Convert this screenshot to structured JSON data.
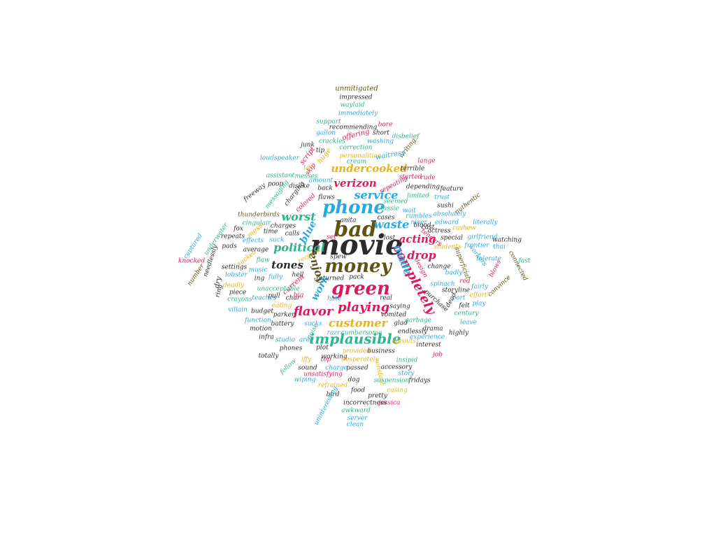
{
  "palette": {
    "pink": "#d81b60",
    "blue": "#29a8e0",
    "teal": "#2bb58a",
    "gold": "#e8b21a",
    "dark": "#2b2b2b",
    "olive": "#5f5413"
  },
  "words": [
    {
      "text": "movie",
      "color": "dark"
    },
    {
      "text": "bad",
      "color": "olive"
    },
    {
      "text": "money",
      "color": "olive"
    },
    {
      "text": "green",
      "color": "pink"
    },
    {
      "text": "phone",
      "color": "blue"
    },
    {
      "text": "implausible",
      "color": "teal"
    },
    {
      "text": "completely",
      "color": "pink"
    },
    {
      "text": "flavor",
      "color": "pink"
    },
    {
      "text": "playing",
      "color": "pink"
    },
    {
      "text": "customer",
      "color": "gold"
    },
    {
      "text": "political",
      "color": "teal"
    },
    {
      "text": "worst",
      "color": "teal"
    },
    {
      "text": "service",
      "color": "blue"
    },
    {
      "text": "waste",
      "color": "blue"
    },
    {
      "text": "acting",
      "color": "pink"
    },
    {
      "text": "verizon",
      "color": "pink"
    },
    {
      "text": "undercooked",
      "color": "gold"
    },
    {
      "text": "made",
      "color": "blue"
    },
    {
      "text": "drop",
      "color": "pink"
    },
    {
      "text": "tones",
      "color": "dark"
    },
    {
      "text": "enjoy",
      "color": "olive"
    },
    {
      "text": "blue",
      "color": "blue"
    },
    {
      "text": "work",
      "color": "blue"
    },
    {
      "text": "unmitigated",
      "color": "olive"
    },
    {
      "text": "impressed",
      "color": "dark"
    },
    {
      "text": "waylaid",
      "color": "teal"
    },
    {
      "text": "immediately",
      "color": "blue"
    },
    {
      "text": "support",
      "color": "teal"
    },
    {
      "text": "bore",
      "color": "pink"
    },
    {
      "text": "recommending",
      "color": "dark"
    },
    {
      "text": "gallon",
      "color": "blue"
    },
    {
      "text": "offering",
      "color": "pink"
    },
    {
      "text": "short",
      "color": "dark"
    },
    {
      "text": "disbelief",
      "color": "teal"
    },
    {
      "text": "crackles",
      "color": "teal"
    },
    {
      "text": "washing",
      "color": "blue"
    },
    {
      "text": "junk",
      "color": "dark"
    },
    {
      "text": "correction",
      "color": "teal"
    },
    {
      "text": "writing",
      "color": "olive"
    },
    {
      "text": "tip",
      "color": "dark"
    },
    {
      "text": "personalities",
      "color": "gold"
    },
    {
      "text": "waitress",
      "color": "blue"
    },
    {
      "text": "lange",
      "color": "pink"
    },
    {
      "text": "loudspeaker",
      "color": "blue"
    },
    {
      "text": "script",
      "color": "pink"
    },
    {
      "text": "huge",
      "color": "gold"
    },
    {
      "text": "cream",
      "color": "teal"
    },
    {
      "text": "text",
      "color": "gold"
    },
    {
      "text": "skip",
      "color": "pink"
    },
    {
      "text": "terrible",
      "color": "dark"
    },
    {
      "text": "assistant",
      "color": "teal"
    },
    {
      "text": "messes",
      "color": "teal"
    },
    {
      "text": "started",
      "color": "pink"
    },
    {
      "text": "rude",
      "color": "pink"
    },
    {
      "text": "amount",
      "color": "blue"
    },
    {
      "text": "repeating",
      "color": "pink"
    },
    {
      "text": "poop",
      "color": "dark"
    },
    {
      "text": "dislike",
      "color": "dark"
    },
    {
      "text": "depending",
      "color": "dark"
    },
    {
      "text": "feature",
      "color": "dark"
    },
    {
      "text": "back",
      "color": "dark"
    },
    {
      "text": "limited",
      "color": "teal"
    },
    {
      "text": "freeway",
      "color": "dark"
    },
    {
      "text": "messaging",
      "color": "teal"
    },
    {
      "text": "charging",
      "color": "dark"
    },
    {
      "text": "flaws",
      "color": "dark"
    },
    {
      "text": "seemed",
      "color": "teal"
    },
    {
      "text": "trust",
      "color": "blue"
    },
    {
      "text": "colored",
      "color": "pink"
    },
    {
      "text": "lassie",
      "color": "teal"
    },
    {
      "text": "wait",
      "color": "blue"
    },
    {
      "text": "authentic",
      "color": "olive"
    },
    {
      "text": "thunderbirds",
      "color": "olive"
    },
    {
      "text": "cingulair",
      "color": "teal"
    },
    {
      "text": "charges",
      "color": "dark"
    },
    {
      "text": "anita",
      "color": "dark"
    },
    {
      "text": "cases",
      "color": "dark"
    },
    {
      "text": "nicer",
      "color": "blue"
    },
    {
      "text": "absolutely",
      "color": "blue"
    },
    {
      "text": "underwater",
      "color": "teal"
    },
    {
      "text": "time",
      "color": "dark"
    },
    {
      "text": "rumbles",
      "color": "blue"
    },
    {
      "text": "edward",
      "color": "blue"
    },
    {
      "text": "literally",
      "color": "blue"
    },
    {
      "text": "fox",
      "color": "dark"
    },
    {
      "text": "mess",
      "color": "gold"
    },
    {
      "text": "calls",
      "color": "dark"
    },
    {
      "text": "blood",
      "color": "dark"
    },
    {
      "text": "cast",
      "color": "dark"
    },
    {
      "text": "sushi",
      "color": "dark"
    },
    {
      "text": "cashew",
      "color": "gold"
    },
    {
      "text": "repeats",
      "color": "dark"
    },
    {
      "text": "set",
      "color": "pink"
    },
    {
      "text": "lost",
      "color": "dark"
    },
    {
      "text": "actress",
      "color": "dark"
    },
    {
      "text": "special",
      "color": "dark"
    },
    {
      "text": "girlfriend",
      "color": "blue"
    },
    {
      "text": "captured",
      "color": "blue"
    },
    {
      "text": "effects",
      "color": "blue"
    },
    {
      "text": "suck",
      "color": "blue"
    },
    {
      "text": "pads",
      "color": "dark"
    },
    {
      "text": "students",
      "color": "gold"
    },
    {
      "text": "tenders",
      "color": "pink"
    },
    {
      "text": "watching",
      "color": "dark"
    },
    {
      "text": "frontier",
      "color": "blue"
    },
    {
      "text": "thai",
      "color": "blue"
    },
    {
      "text": "sucked",
      "color": "gold"
    },
    {
      "text": "average",
      "color": "dark"
    },
    {
      "text": "flaw",
      "color": "teal"
    },
    {
      "text": "knocked",
      "color": "pink"
    },
    {
      "text": "tolerate",
      "color": "blue"
    },
    {
      "text": "connected",
      "color": "olive"
    },
    {
      "text": "fast",
      "color": "teal"
    },
    {
      "text": "needlessly",
      "color": "dark"
    },
    {
      "text": "settings",
      "color": "dark"
    },
    {
      "text": "recover",
      "color": "gold"
    },
    {
      "text": "design",
      "color": "pink"
    },
    {
      "text": "change",
      "color": "dark"
    },
    {
      "text": "superficial",
      "color": "olive"
    },
    {
      "text": "workers",
      "color": "blue"
    },
    {
      "text": "music",
      "color": "blue"
    },
    {
      "text": "hell",
      "color": "dark"
    },
    {
      "text": "spew",
      "color": "dark"
    },
    {
      "text": "pack",
      "color": "dark"
    },
    {
      "text": "badly",
      "color": "blue"
    },
    {
      "text": "blows",
      "color": "pink"
    },
    {
      "text": "number",
      "color": "olive"
    },
    {
      "text": "lobster",
      "color": "blue"
    },
    {
      "text": "ing",
      "color": "dark"
    },
    {
      "text": "red",
      "color": "pink"
    },
    {
      "text": "convince",
      "color": "olive"
    },
    {
      "text": "piece",
      "color": "dark"
    },
    {
      "text": "fully",
      "color": "blue"
    },
    {
      "text": "returned",
      "color": "dark"
    },
    {
      "text": "spinach",
      "color": "blue"
    },
    {
      "text": "fairly",
      "color": "blue"
    },
    {
      "text": "deadly",
      "color": "gold"
    },
    {
      "text": "current",
      "color": "pink"
    },
    {
      "text": "storyline",
      "color": "dark"
    },
    {
      "text": "unacceptable",
      "color": "teal"
    },
    {
      "text": "ring",
      "color": "dark"
    },
    {
      "text": "hate",
      "color": "blue"
    },
    {
      "text": "effort",
      "color": "gold"
    },
    {
      "text": "dry",
      "color": "dark"
    },
    {
      "text": "crayons",
      "color": "teal"
    },
    {
      "text": "teaches",
      "color": "blue"
    },
    {
      "text": "char",
      "color": "dark"
    },
    {
      "text": "real",
      "color": "dark"
    },
    {
      "text": "port",
      "color": "blue"
    },
    {
      "text": "felt",
      "color": "dark"
    },
    {
      "text": "play",
      "color": "blue"
    },
    {
      "text": "villain",
      "color": "blue"
    },
    {
      "text": "budget",
      "color": "dark"
    },
    {
      "text": "eating",
      "color": "gold"
    },
    {
      "text": "saying",
      "color": "dark"
    },
    {
      "text": "purchase",
      "color": "dark"
    },
    {
      "text": "dead",
      "color": "dark"
    },
    {
      "text": "parker",
      "color": "dark"
    },
    {
      "text": "vomited",
      "color": "dark"
    },
    {
      "text": "century",
      "color": "teal"
    },
    {
      "text": "function",
      "color": "blue"
    },
    {
      "text": "battery",
      "color": "dark"
    },
    {
      "text": "sucks",
      "color": "blue"
    },
    {
      "text": "glad",
      "color": "dark"
    },
    {
      "text": "garbage",
      "color": "teal"
    },
    {
      "text": "leave",
      "color": "blue"
    },
    {
      "text": "motion",
      "color": "dark"
    },
    {
      "text": "drama",
      "color": "dark"
    },
    {
      "text": "infra",
      "color": "dark"
    },
    {
      "text": "studio",
      "color": "blue"
    },
    {
      "text": "area",
      "color": "blue"
    },
    {
      "text": "razr",
      "color": "blue"
    },
    {
      "text": "cumbersome",
      "color": "teal"
    },
    {
      "text": "endlessly",
      "color": "dark"
    },
    {
      "text": "highly",
      "color": "dark"
    },
    {
      "text": "sprouts",
      "color": "gold"
    },
    {
      "text": "experience",
      "color": "blue"
    },
    {
      "text": "phones",
      "color": "dark"
    },
    {
      "text": "plot",
      "color": "dark"
    },
    {
      "text": "provided",
      "color": "gold"
    },
    {
      "text": "business",
      "color": "dark"
    },
    {
      "text": "interest",
      "color": "dark"
    },
    {
      "text": "totally",
      "color": "dark"
    },
    {
      "text": "iffy",
      "color": "gold"
    },
    {
      "text": "top",
      "color": "pink"
    },
    {
      "text": "working",
      "color": "dark"
    },
    {
      "text": "desperately",
      "color": "gold"
    },
    {
      "text": "insipid",
      "color": "teal"
    },
    {
      "text": "job",
      "color": "pink"
    },
    {
      "text": "follow",
      "color": "teal"
    },
    {
      "text": "sound",
      "color": "dark"
    },
    {
      "text": "charge",
      "color": "blue"
    },
    {
      "text": "passed",
      "color": "dark"
    },
    {
      "text": "accessory",
      "color": "dark"
    },
    {
      "text": "constant",
      "color": "gold"
    },
    {
      "text": "story",
      "color": "blue"
    },
    {
      "text": "wiping",
      "color": "blue"
    },
    {
      "text": "unsatisfying",
      "color": "pink"
    },
    {
      "text": "dog",
      "color": "dark"
    },
    {
      "text": "suspension",
      "color": "teal"
    },
    {
      "text": "fridays",
      "color": "dark"
    },
    {
      "text": "refrained",
      "color": "gold"
    },
    {
      "text": "food",
      "color": "dark"
    },
    {
      "text": "casing",
      "color": "gold"
    },
    {
      "text": "bird",
      "color": "dark"
    },
    {
      "text": "pretty",
      "color": "dark"
    },
    {
      "text": "jessica",
      "color": "pink"
    },
    {
      "text": "uninteresting",
      "color": "blue"
    },
    {
      "text": "incorrectness",
      "color": "dark"
    },
    {
      "text": "awkward",
      "color": "teal"
    },
    {
      "text": "server",
      "color": "blue"
    },
    {
      "text": "clean",
      "color": "blue"
    },
    {
      "text": "pull",
      "color": "dark"
    },
    {
      "text": "big",
      "color": "pink"
    },
    {
      "text": "noise",
      "color": "teal"
    }
  ]
}
